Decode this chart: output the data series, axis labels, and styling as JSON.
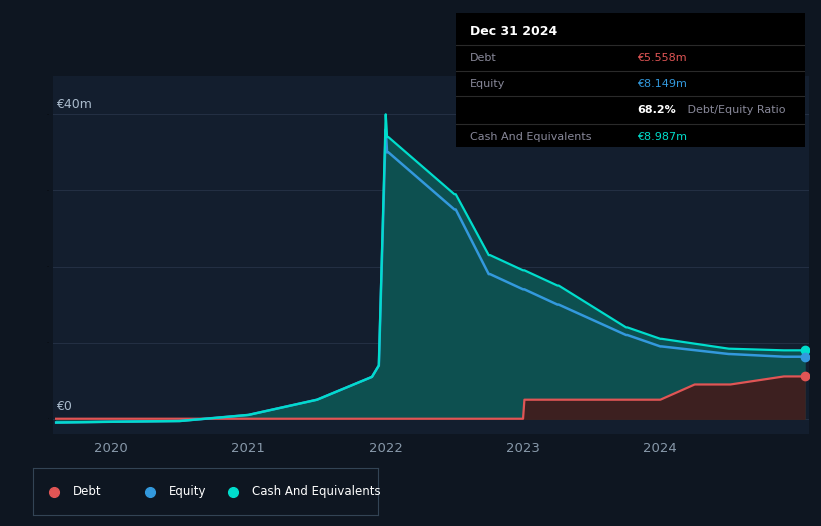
{
  "bg_color": "#0e1621",
  "plot_bg_color": "#131e2e",
  "grid_color": "#243044",
  "title_box": {
    "date": "Dec 31 2024",
    "debt_label": "Debt",
    "debt_value": "€5.558m",
    "equity_label": "Equity",
    "equity_value": "€8.149m",
    "ratio_bold": "68.2%",
    "ratio_text": " Debt/Equity Ratio",
    "cash_label": "Cash And Equivalents",
    "cash_value": "€8.987m"
  },
  "ylabel_top": "€40m",
  "ylabel_zero": "€0",
  "x_ticks": [
    "2020",
    "2021",
    "2022",
    "2023",
    "2024"
  ],
  "x_tick_pos": [
    2020,
    2021,
    2022,
    2023,
    2024
  ],
  "colors": {
    "debt": "#e05555",
    "equity": "#3399dd",
    "cash": "#00ddcc",
    "fill_cash": "#0d5050",
    "fill_debt": "#3d2020"
  },
  "debt": {
    "x": [
      2019.6,
      2020.0,
      2020.5,
      2021.0,
      2021.5,
      2021.95,
      2022.0,
      2022.01,
      2022.5,
      2022.75,
      2022.76,
      2023.0,
      2023.01,
      2023.25,
      2023.5,
      2023.51,
      2024.0,
      2024.25,
      2024.5,
      2024.51,
      2024.9,
      2025.05
    ],
    "y": [
      0.0,
      0.0,
      0.0,
      0.0,
      0.0,
      0.0,
      0.0,
      0.0,
      0.0,
      0.0,
      0.0,
      0.0,
      2.5,
      2.5,
      2.5,
      2.5,
      2.5,
      4.5,
      4.5,
      4.5,
      5.558,
      5.558
    ]
  },
  "equity": {
    "x": [
      2019.6,
      2020.0,
      2020.5,
      2021.0,
      2021.5,
      2021.9,
      2021.95,
      2022.0,
      2022.01,
      2022.02,
      2022.5,
      2022.51,
      2022.75,
      2022.76,
      2023.0,
      2023.01,
      2023.25,
      2023.26,
      2023.75,
      2023.76,
      2024.0,
      2024.01,
      2024.5,
      2024.51,
      2024.9,
      2025.05
    ],
    "y": [
      -0.5,
      -0.4,
      -0.3,
      0.5,
      2.5,
      5.5,
      7.0,
      38.0,
      35.0,
      35.0,
      27.5,
      27.5,
      19.0,
      19.0,
      17.0,
      17.0,
      15.0,
      15.0,
      11.0,
      11.0,
      9.5,
      9.5,
      8.5,
      8.5,
      8.149,
      8.149
    ]
  },
  "cash": {
    "x": [
      2019.6,
      2020.0,
      2020.5,
      2021.0,
      2021.5,
      2021.9,
      2021.95,
      2022.0,
      2022.01,
      2022.02,
      2022.5,
      2022.51,
      2022.75,
      2022.76,
      2023.0,
      2023.01,
      2023.25,
      2023.26,
      2023.75,
      2023.76,
      2024.0,
      2024.01,
      2024.5,
      2024.51,
      2024.9,
      2025.05
    ],
    "y": [
      -0.5,
      -0.4,
      -0.3,
      0.5,
      2.5,
      5.5,
      7.0,
      40.0,
      37.0,
      37.0,
      29.5,
      29.5,
      21.5,
      21.5,
      19.5,
      19.5,
      17.5,
      17.5,
      12.0,
      12.0,
      10.5,
      10.5,
      9.2,
      9.2,
      8.987,
      8.987
    ]
  },
  "ylim": [
    -2,
    45
  ],
  "xlim": [
    2019.58,
    2025.08
  ],
  "legend": [
    {
      "label": "Debt",
      "color": "#e05555"
    },
    {
      "label": "Equity",
      "color": "#3399dd"
    },
    {
      "label": "Cash And Equivalents",
      "color": "#00ddcc"
    }
  ]
}
